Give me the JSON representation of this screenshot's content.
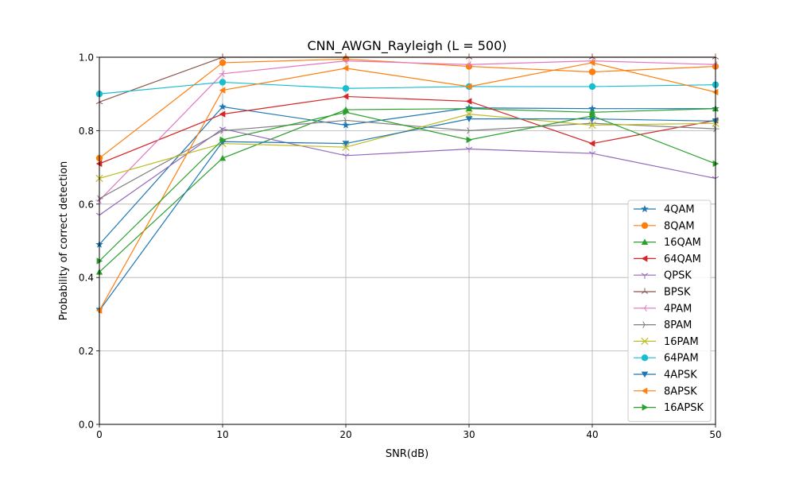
{
  "chart_data": {
    "type": "line",
    "title": "CNN_AWGN_Rayleigh (L = 500)",
    "xlabel": "SNR(dB)",
    "ylabel": "Probability of correct detection",
    "x": [
      0,
      10,
      20,
      30,
      40,
      50
    ],
    "xlim": [
      0,
      50
    ],
    "ylim": [
      0,
      1.0
    ],
    "xticks": [
      0,
      10,
      20,
      30,
      40,
      50
    ],
    "yticks": [
      0.0,
      0.2,
      0.4,
      0.6,
      0.8,
      1.0
    ],
    "xtick_labels": [
      "0",
      "10",
      "20",
      "30",
      "40",
      "50"
    ],
    "ytick_labels": [
      "0.0",
      "0.2",
      "0.4",
      "0.6",
      "0.8",
      "1.0"
    ],
    "grid": true,
    "legend_position": "lower-right",
    "series": [
      {
        "name": "4QAM",
        "color": "#1f77b4",
        "marker": "star",
        "values": [
          0.49,
          0.865,
          0.815,
          0.862,
          0.86,
          0.86
        ]
      },
      {
        "name": "8QAM",
        "color": "#ff7f0e",
        "marker": "circle",
        "values": [
          0.725,
          0.985,
          0.995,
          0.975,
          0.96,
          0.975
        ]
      },
      {
        "name": "16QAM",
        "color": "#2ca02c",
        "marker": "triangle-up",
        "values": [
          0.415,
          0.725,
          0.857,
          0.86,
          0.85,
          0.86
        ]
      },
      {
        "name": "64QAM",
        "color": "#d62728",
        "marker": "triangle-left",
        "values": [
          0.71,
          0.845,
          0.893,
          0.88,
          0.765,
          0.828
        ]
      },
      {
        "name": "QPSK",
        "color": "#9467bd",
        "marker": "tri-down",
        "values": [
          0.57,
          0.805,
          0.732,
          0.75,
          0.738,
          0.67
        ]
      },
      {
        "name": "BPSK",
        "color": "#8c564b",
        "marker": "tri-up",
        "values": [
          0.878,
          1.0,
          1.0,
          1.0,
          1.0,
          1.0
        ]
      },
      {
        "name": "4PAM",
        "color": "#e377c2",
        "marker": "tri-left",
        "values": [
          0.61,
          0.955,
          0.99,
          0.98,
          0.99,
          0.98
        ]
      },
      {
        "name": "8PAM",
        "color": "#7f7f7f",
        "marker": "tri-right",
        "values": [
          0.615,
          0.8,
          0.828,
          0.8,
          0.82,
          0.805
        ]
      },
      {
        "name": "16PAM",
        "color": "#bcbd22",
        "marker": "x",
        "values": [
          0.67,
          0.765,
          0.755,
          0.845,
          0.815,
          0.82
        ]
      },
      {
        "name": "64PAM",
        "color": "#17becf",
        "marker": "circle",
        "values": [
          0.9,
          0.932,
          0.915,
          0.92,
          0.92,
          0.925
        ]
      },
      {
        "name": "4APSK",
        "color": "#1f77b4",
        "marker": "triangle-down",
        "values": [
          0.31,
          0.77,
          0.765,
          0.832,
          0.832,
          0.826
        ]
      },
      {
        "name": "8APSK",
        "color": "#ff7f0e",
        "marker": "triangle-left",
        "values": [
          0.31,
          0.91,
          0.97,
          0.92,
          0.985,
          0.905
        ]
      },
      {
        "name": "16APSK",
        "color": "#2ca02c",
        "marker": "triangle-right",
        "values": [
          0.445,
          0.775,
          0.85,
          0.775,
          0.84,
          0.71
        ]
      }
    ]
  }
}
